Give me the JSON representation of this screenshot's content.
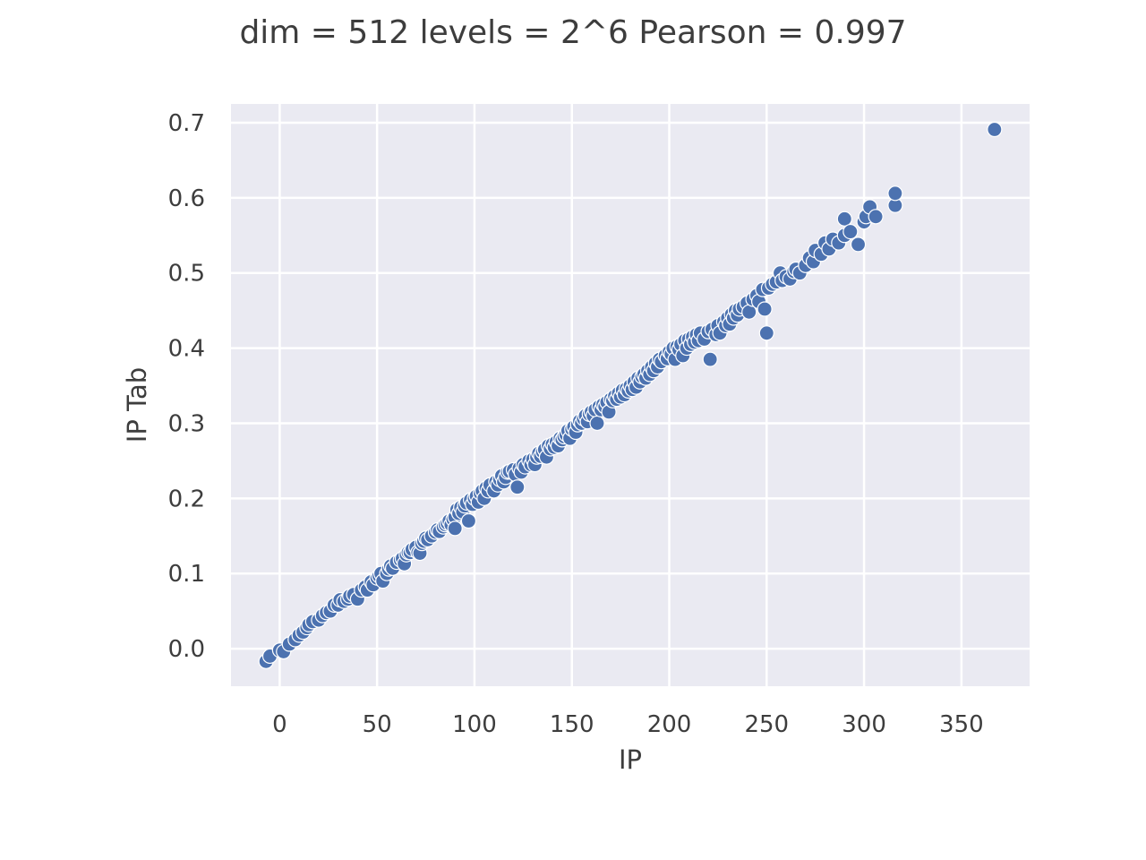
{
  "chart_data": {
    "type": "scatter",
    "title": "dim = 512 levels = 2^6 Pearson = 0.997",
    "xlabel": "IP",
    "ylabel": "IP Tab",
    "xlim": [
      -25,
      385
    ],
    "ylim": [
      -0.05,
      0.725
    ],
    "x_ticks": [
      0,
      50,
      100,
      150,
      200,
      250,
      300,
      350
    ],
    "x_tick_labels": [
      "0",
      "50",
      "100",
      "150",
      "200",
      "250",
      "300",
      "350"
    ],
    "y_ticks": [
      0.0,
      0.1,
      0.2,
      0.3,
      0.4,
      0.5,
      0.6,
      0.7
    ],
    "y_tick_labels": [
      "0.0",
      "0.1",
      "0.2",
      "0.3",
      "0.4",
      "0.5",
      "0.6",
      "0.7"
    ],
    "grid": true,
    "legend": "none",
    "colors": {
      "background": "#eaeaf2",
      "grid": "#ffffff",
      "points": "#4c72b0",
      "text": "#3d3d3d"
    },
    "series": [
      {
        "points": [
          [
            -7,
            -0.017
          ],
          [
            -5,
            -0.01
          ],
          [
            0,
            -0.002
          ],
          [
            2,
            -0.004
          ],
          [
            5,
            0.006
          ],
          [
            8,
            0.012
          ],
          [
            10,
            0.018
          ],
          [
            12,
            0.022
          ],
          [
            14,
            0.028
          ],
          [
            15,
            0.032
          ],
          [
            17,
            0.036
          ],
          [
            20,
            0.038
          ],
          [
            22,
            0.044
          ],
          [
            24,
            0.048
          ],
          [
            26,
            0.05
          ],
          [
            28,
            0.058
          ],
          [
            30,
            0.058
          ],
          [
            31,
            0.065
          ],
          [
            33,
            0.063
          ],
          [
            35,
            0.066
          ],
          [
            36,
            0.07
          ],
          [
            38,
            0.072
          ],
          [
            40,
            0.066
          ],
          [
            42,
            0.078
          ],
          [
            44,
            0.082
          ],
          [
            45,
            0.078
          ],
          [
            47,
            0.089
          ],
          [
            48,
            0.085
          ],
          [
            50,
            0.094
          ],
          [
            51,
            0.097
          ],
          [
            52,
            0.1
          ],
          [
            53,
            0.09
          ],
          [
            55,
            0.1
          ],
          [
            56,
            0.106
          ],
          [
            57,
            0.11
          ],
          [
            58,
            0.107
          ],
          [
            60,
            0.115
          ],
          [
            62,
            0.118
          ],
          [
            63,
            0.12
          ],
          [
            64,
            0.113
          ],
          [
            65,
            0.125
          ],
          [
            66,
            0.128
          ],
          [
            67,
            0.128
          ],
          [
            68,
            0.132
          ],
          [
            70,
            0.135
          ],
          [
            71,
            0.128
          ],
          [
            72,
            0.127
          ],
          [
            73,
            0.14
          ],
          [
            74,
            0.143
          ],
          [
            75,
            0.147
          ],
          [
            76,
            0.145
          ],
          [
            78,
            0.15
          ],
          [
            80,
            0.155
          ],
          [
            81,
            0.158
          ],
          [
            82,
            0.156
          ],
          [
            84,
            0.162
          ],
          [
            85,
            0.165
          ],
          [
            86,
            0.167
          ],
          [
            87,
            0.17
          ],
          [
            88,
            0.165
          ],
          [
            89,
            0.172
          ],
          [
            90,
            0.175
          ],
          [
            90,
            0.16
          ],
          [
            91,
            0.185
          ],
          [
            92,
            0.18
          ],
          [
            93,
            0.188
          ],
          [
            94,
            0.182
          ],
          [
            95,
            0.19
          ],
          [
            96,
            0.194
          ],
          [
            97,
            0.17
          ],
          [
            98,
            0.198
          ],
          [
            99,
            0.192
          ],
          [
            100,
            0.2
          ],
          [
            101,
            0.203
          ],
          [
            102,
            0.195
          ],
          [
            103,
            0.207
          ],
          [
            104,
            0.21
          ],
          [
            105,
            0.2
          ],
          [
            106,
            0.214
          ],
          [
            107,
            0.21
          ],
          [
            108,
            0.218
          ],
          [
            110,
            0.21
          ],
          [
            111,
            0.222
          ],
          [
            112,
            0.218
          ],
          [
            113,
            0.225
          ],
          [
            114,
            0.23
          ],
          [
            115,
            0.222
          ],
          [
            116,
            0.228
          ],
          [
            117,
            0.235
          ],
          [
            118,
            0.236
          ],
          [
            120,
            0.238
          ],
          [
            121,
            0.232
          ],
          [
            122,
            0.215
          ],
          [
            123,
            0.24
          ],
          [
            124,
            0.235
          ],
          [
            125,
            0.245
          ],
          [
            126,
            0.242
          ],
          [
            128,
            0.25
          ],
          [
            129,
            0.245
          ],
          [
            130,
            0.252
          ],
          [
            131,
            0.245
          ],
          [
            132,
            0.255
          ],
          [
            133,
            0.26
          ],
          [
            134,
            0.256
          ],
          [
            135,
            0.262
          ],
          [
            136,
            0.265
          ],
          [
            137,
            0.255
          ],
          [
            138,
            0.27
          ],
          [
            139,
            0.266
          ],
          [
            140,
            0.272
          ],
          [
            141,
            0.268
          ],
          [
            142,
            0.275
          ],
          [
            143,
            0.27
          ],
          [
            144,
            0.28
          ],
          [
            145,
            0.278
          ],
          [
            146,
            0.282
          ],
          [
            147,
            0.285
          ],
          [
            148,
            0.29
          ],
          [
            149,
            0.28
          ],
          [
            150,
            0.292
          ],
          [
            151,
            0.295
          ],
          [
            152,
            0.288
          ],
          [
            153,
            0.298
          ],
          [
            154,
            0.303
          ],
          [
            155,
            0.3
          ],
          [
            156,
            0.306
          ],
          [
            157,
            0.31
          ],
          [
            158,
            0.302
          ],
          [
            159,
            0.312
          ],
          [
            160,
            0.315
          ],
          [
            161,
            0.31
          ],
          [
            162,
            0.318
          ],
          [
            163,
            0.3
          ],
          [
            164,
            0.322
          ],
          [
            165,
            0.318
          ],
          [
            166,
            0.325
          ],
          [
            167,
            0.322
          ],
          [
            168,
            0.328
          ],
          [
            169,
            0.315
          ],
          [
            170,
            0.332
          ],
          [
            171,
            0.33
          ],
          [
            172,
            0.336
          ],
          [
            173,
            0.332
          ],
          [
            174,
            0.34
          ],
          [
            175,
            0.335
          ],
          [
            176,
            0.344
          ],
          [
            177,
            0.338
          ],
          [
            178,
            0.346
          ],
          [
            179,
            0.343
          ],
          [
            180,
            0.35
          ],
          [
            181,
            0.345
          ],
          [
            182,
            0.355
          ],
          [
            183,
            0.348
          ],
          [
            184,
            0.36
          ],
          [
            185,
            0.355
          ],
          [
            186,
            0.362
          ],
          [
            187,
            0.365
          ],
          [
            188,
            0.36
          ],
          [
            189,
            0.37
          ],
          [
            190,
            0.365
          ],
          [
            191,
            0.375
          ],
          [
            192,
            0.37
          ],
          [
            193,
            0.38
          ],
          [
            194,
            0.375
          ],
          [
            195,
            0.385
          ],
          [
            196,
            0.382
          ],
          [
            198,
            0.39
          ],
          [
            199,
            0.386
          ],
          [
            200,
            0.395
          ],
          [
            201,
            0.392
          ],
          [
            202,
            0.4
          ],
          [
            203,
            0.385
          ],
          [
            204,
            0.402
          ],
          [
            205,
            0.398
          ],
          [
            206,
            0.405
          ],
          [
            207,
            0.39
          ],
          [
            208,
            0.41
          ],
          [
            209,
            0.4
          ],
          [
            210,
            0.412
          ],
          [
            211,
            0.405
          ],
          [
            212,
            0.415
          ],
          [
            213,
            0.408
          ],
          [
            214,
            0.418
          ],
          [
            215,
            0.41
          ],
          [
            216,
            0.42
          ],
          [
            218,
            0.412
          ],
          [
            220,
            0.422
          ],
          [
            221,
            0.385
          ],
          [
            222,
            0.425
          ],
          [
            224,
            0.418
          ],
          [
            225,
            0.43
          ],
          [
            226,
            0.42
          ],
          [
            228,
            0.435
          ],
          [
            229,
            0.43
          ],
          [
            230,
            0.44
          ],
          [
            231,
            0.432
          ],
          [
            232,
            0.445
          ],
          [
            233,
            0.44
          ],
          [
            234,
            0.45
          ],
          [
            235,
            0.444
          ],
          [
            236,
            0.452
          ],
          [
            238,
            0.455
          ],
          [
            240,
            0.46
          ],
          [
            241,
            0.448
          ],
          [
            243,
            0.465
          ],
          [
            245,
            0.47
          ],
          [
            246,
            0.462
          ],
          [
            248,
            0.478
          ],
          [
            249,
            0.452
          ],
          [
            250,
            0.42
          ],
          [
            251,
            0.48
          ],
          [
            253,
            0.485
          ],
          [
            255,
            0.488
          ],
          [
            257,
            0.5
          ],
          [
            258,
            0.49
          ],
          [
            260,
            0.495
          ],
          [
            262,
            0.492
          ],
          [
            264,
            0.502
          ],
          [
            265,
            0.505
          ],
          [
            267,
            0.5
          ],
          [
            270,
            0.51
          ],
          [
            272,
            0.52
          ],
          [
            274,
            0.515
          ],
          [
            275,
            0.53
          ],
          [
            278,
            0.525
          ],
          [
            280,
            0.54
          ],
          [
            282,
            0.532
          ],
          [
            284,
            0.545
          ],
          [
            287,
            0.54
          ],
          [
            290,
            0.55
          ],
          [
            290,
            0.572
          ],
          [
            293,
            0.555
          ],
          [
            297,
            0.538
          ],
          [
            300,
            0.568
          ],
          [
            301,
            0.575
          ],
          [
            303,
            0.588
          ],
          [
            306,
            0.575
          ],
          [
            316,
            0.59
          ],
          [
            316,
            0.606
          ],
          [
            367,
            0.691
          ]
        ]
      }
    ]
  }
}
